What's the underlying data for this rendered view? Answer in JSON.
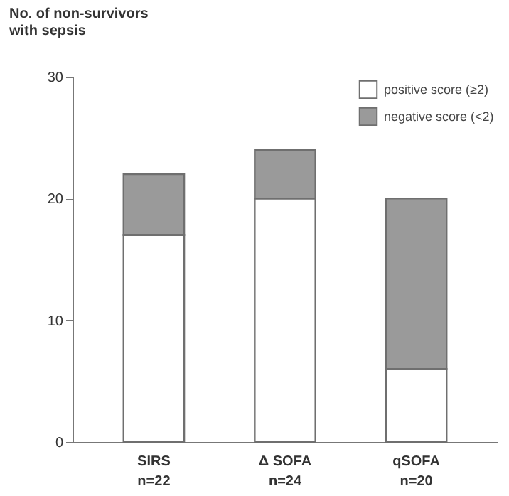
{
  "chart_data": {
    "type": "bar",
    "stacked": true,
    "ylabel": "No. of non-survivors\nwith sepsis",
    "categories": [
      "SIRS\nn=22",
      "Δ SOFA\nn=24",
      "qSOFA\nn=20"
    ],
    "series": [
      {
        "name": "positive score (≥2)",
        "color": "#ffffff",
        "values": [
          17,
          20,
          6
        ]
      },
      {
        "name": "negative score (<2)",
        "color": "#9a9a9a",
        "values": [
          5,
          4,
          14
        ]
      }
    ],
    "ylim": [
      0,
      30
    ],
    "yticks": [
      0,
      10,
      20,
      30
    ],
    "grid": false,
    "legend": "top right"
  }
}
